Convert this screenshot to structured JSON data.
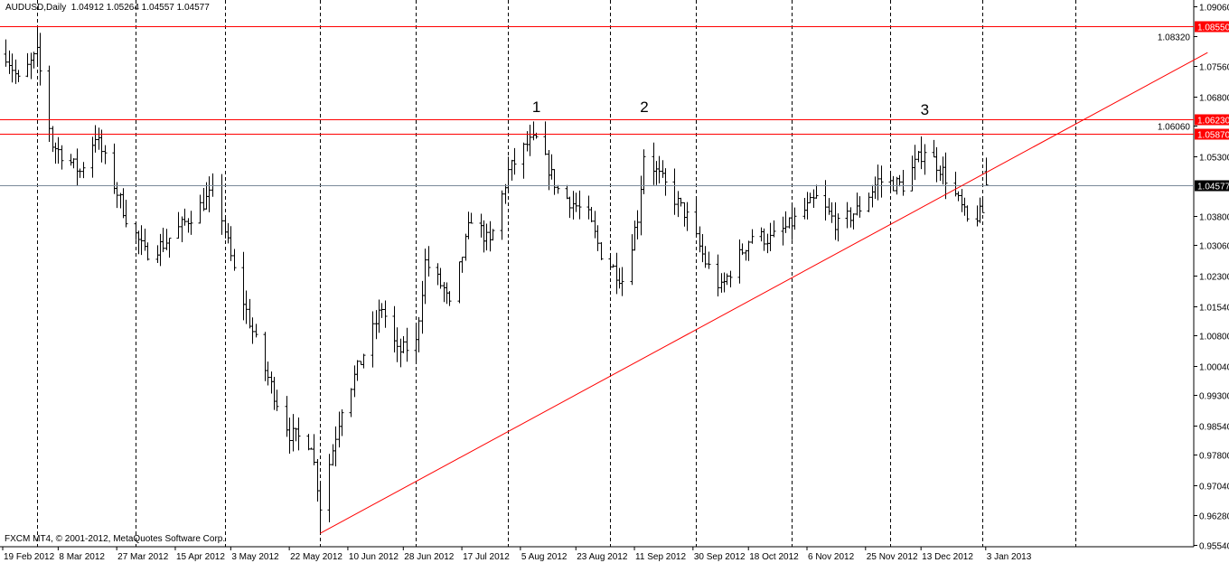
{
  "chart_data": {
    "type": "ohlc",
    "symbol": "AUDUSD",
    "timeframe": "Daily",
    "header": {
      "title": "AUDUSD,Daily",
      "open": "1.04912",
      "high": "1.05264",
      "low": "1.04557",
      "close": "1.04577"
    },
    "footer": "FXCM MT4, © 2001-2012, MetaQuotes Software Corp.",
    "ylim": [
      0.9554,
      1.0906
    ],
    "y_ticks": [
      "1.09060",
      "1.08320",
      "1.07560",
      "1.06800",
      "1.06060",
      "1.05300",
      "1.03800",
      "1.03060",
      "1.02300",
      "1.01540",
      "1.00800",
      "1.00040",
      "0.99300",
      "0.98540",
      "0.97800",
      "0.97040",
      "0.96280",
      "0.95540"
    ],
    "x_ticks": [
      "19 Feb 2012",
      "8 Mar 2012",
      "27 Mar 2012",
      "15 Apr 2012",
      "3 May 2012",
      "22 May 2012",
      "10 Jun 2012",
      "28 Jun 2012",
      "17 Jul 2012",
      "5 Aug 2012",
      "23 Aug 2012",
      "11 Sep 2012",
      "30 Sep 2012",
      "18 Oct 2012",
      "6 Nov 2012",
      "25 Nov 2012",
      "13 Dec 2012",
      "3 Jan 2013"
    ],
    "x_tick_dates": [
      "2012-02-19",
      "2012-03-08",
      "2012-03-27",
      "2012-04-15",
      "2012-05-03",
      "2012-05-22",
      "2012-06-10",
      "2012-06-28",
      "2012-07-17",
      "2012-08-05",
      "2012-08-23",
      "2012-09-11",
      "2012-09-30",
      "2012-10-18",
      "2012-11-06",
      "2012-11-25",
      "2012-12-13",
      "2013-01-03"
    ],
    "period_separators": [
      "2012-03-01",
      "2012-04-02",
      "2012-05-01",
      "2012-06-01",
      "2012-07-02",
      "2012-08-01",
      "2012-09-03",
      "2012-10-01",
      "2012-11-01",
      "2012-12-03",
      "2013-01-02",
      "2013-02-01"
    ],
    "price_path": [
      [
        "2012-02-20",
        1.0786
      ],
      [
        "2012-02-24",
        1.0718
      ],
      [
        "2012-03-01",
        1.0786
      ],
      [
        "2012-03-06",
        1.0559
      ],
      [
        "2012-03-15",
        1.0491
      ],
      [
        "2012-03-20",
        1.0582
      ],
      [
        "2012-03-30",
        1.0377
      ],
      [
        "2012-04-05",
        1.0287
      ],
      [
        "2012-04-11",
        1.0309
      ],
      [
        "2012-04-17",
        1.0355
      ],
      [
        "2012-04-28",
        1.0446
      ],
      [
        "2012-05-04",
        1.0241
      ],
      [
        "2012-05-13",
        1.0014
      ],
      [
        "2012-05-22",
        0.9833
      ],
      [
        "2012-05-29",
        0.981
      ],
      [
        "2012-06-01",
        0.9652
      ],
      [
        "2012-06-08",
        0.9901
      ],
      [
        "2012-06-14",
        1.0014
      ],
      [
        "2012-06-21",
        1.0151
      ],
      [
        "2012-06-26",
        1.0037
      ],
      [
        "2012-07-02",
        1.006
      ],
      [
        "2012-07-05",
        1.0264
      ],
      [
        "2012-07-11",
        1.0196
      ],
      [
        "2012-07-13",
        1.0151
      ],
      [
        "2012-07-20",
        1.0377
      ],
      [
        "2012-07-26",
        1.0309
      ],
      [
        "2012-08-01",
        1.0491
      ],
      [
        "2012-08-07",
        1.0559
      ],
      [
        "2012-08-10",
        1.057
      ],
      [
        "2012-08-17",
        1.0446
      ],
      [
        "2012-08-27",
        1.0377
      ],
      [
        "2012-08-31",
        1.0287
      ],
      [
        "2012-09-07",
        1.0219
      ],
      [
        "2012-09-12",
        1.0377
      ],
      [
        "2012-09-14",
        1.0536
      ],
      [
        "2012-09-20",
        1.0468
      ],
      [
        "2012-09-28",
        1.0377
      ],
      [
        "2012-10-04",
        1.0264
      ],
      [
        "2012-10-09",
        1.0196
      ],
      [
        "2012-10-12",
        1.0241
      ],
      [
        "2012-10-19",
        1.0332
      ],
      [
        "2012-10-25",
        1.0321
      ],
      [
        "2012-10-31",
        1.0355
      ],
      [
        "2012-11-09",
        1.0423
      ],
      [
        "2012-11-16",
        1.0355
      ],
      [
        "2012-11-23",
        1.04
      ],
      [
        "2012-11-29",
        1.0468
      ],
      [
        "2012-12-07",
        1.0457
      ],
      [
        "2012-12-14",
        1.0548
      ],
      [
        "2012-12-20",
        1.0491
      ],
      [
        "2012-12-26",
        1.04
      ],
      [
        "2012-12-28",
        1.0366
      ],
      [
        "2013-01-02",
        1.0389
      ],
      [
        "2013-01-03",
        1.04577
      ]
    ],
    "extremes": {
      "high": [
        "2012-03-01",
        1.0855
      ],
      "low": [
        "2012-06-01",
        0.9583
      ]
    },
    "horizontal_lines": [
      {
        "price": 1.0855,
        "label": "1.08550",
        "color": "#ff0000"
      },
      {
        "price": 1.0623,
        "label": "1.06230",
        "color": "#ff0000"
      },
      {
        "price": 1.0587,
        "label": "1.05870",
        "color": "#ff0000"
      },
      {
        "price": 1.04577,
        "label": "1.04577",
        "color": "#7a8a99",
        "current": true
      }
    ],
    "trendline": {
      "from": [
        "2012-06-01",
        0.9583
      ],
      "to": [
        "2013-03-16",
        1.079
      ],
      "color": "#ff0000"
    },
    "annotations": [
      {
        "text": "1",
        "date": "2012-08-10",
        "price": 1.0652
      },
      {
        "text": "2",
        "date": "2012-09-14",
        "price": 1.0652
      },
      {
        "text": "3",
        "date": "2012-12-14",
        "price": 1.0645
      }
    ],
    "colors": {
      "bars": "#000000",
      "background": "#ffffff",
      "grid": "#000000"
    }
  }
}
